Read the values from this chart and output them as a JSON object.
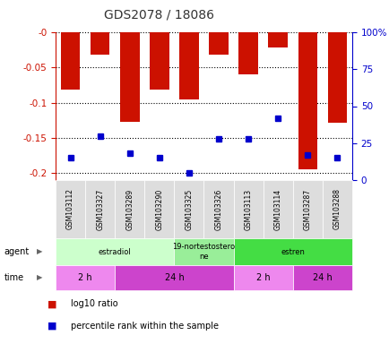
{
  "title": "GDS2078 / 18086",
  "samples": [
    "GSM103112",
    "GSM103327",
    "GSM103289",
    "GSM103290",
    "GSM103325",
    "GSM103326",
    "GSM103113",
    "GSM103114",
    "GSM103287",
    "GSM103288"
  ],
  "log10_ratio": [
    -0.082,
    -0.032,
    -0.127,
    -0.082,
    -0.096,
    -0.032,
    -0.06,
    -0.022,
    -0.195,
    -0.128
  ],
  "percentile_rank": [
    15,
    30,
    18,
    15,
    5,
    28,
    28,
    42,
    17,
    15
  ],
  "ylim_left": [
    -0.21,
    0.0
  ],
  "ylim_right": [
    0,
    100
  ],
  "yticks_left": [
    0.0,
    -0.05,
    -0.1,
    -0.15,
    -0.2
  ],
  "yticks_right": [
    0,
    25,
    50,
    75,
    100
  ],
  "bar_color": "#cc1100",
  "marker_color": "#0000cc",
  "agent_labels": [
    {
      "label": "estradiol",
      "start": 0,
      "end": 4,
      "color": "#ccffcc"
    },
    {
      "label": "19-nortestostero\nne",
      "start": 4,
      "end": 6,
      "color": "#99ee99"
    },
    {
      "label": "estren",
      "start": 6,
      "end": 10,
      "color": "#44dd44"
    }
  ],
  "time_labels": [
    {
      "label": "2 h",
      "start": 0,
      "end": 2,
      "color": "#ee88ee"
    },
    {
      "label": "24 h",
      "start": 2,
      "end": 6,
      "color": "#cc44cc"
    },
    {
      "label": "2 h",
      "start": 6,
      "end": 8,
      "color": "#ee88ee"
    },
    {
      "label": "24 h",
      "start": 8,
      "end": 10,
      "color": "#cc44cc"
    }
  ],
  "legend_red": "log10 ratio",
  "legend_blue": "percentile rank within the sample",
  "left_axis_color": "#cc1100",
  "right_axis_color": "#0000cc",
  "bg_color": "#ffffff",
  "sample_box_color": "#dddddd",
  "figsize": [
    4.35,
    3.84
  ],
  "dpi": 100
}
